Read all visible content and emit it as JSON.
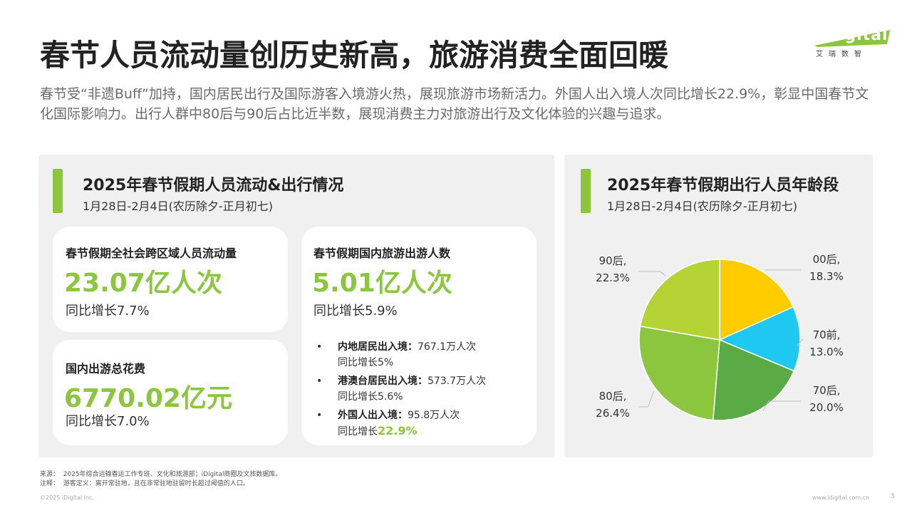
{
  "header": {
    "title": "春节人员流动量创历史新高，旅游消费全面回暖",
    "subtitle": "春节受“非遗Buff”加持，国内居民出行及国际游客入境游火热，展现旅游市场新活力。外国人出入境人次同比增长22.9%，彰显中国春节文化国际影响力。出行人群中80后与90后占比近半数，展现消费主力对旅游出行及文化体验的兴趣与追求。"
  },
  "logo": {
    "brand": "iDigital",
    "tagline": "艾瑞数智"
  },
  "left_panel": {
    "title": "2025年春节假期人员流动&出行情况",
    "date_range": "1月28日-2月4日(农历除夕-正月初七)",
    "cards": [
      {
        "label": "春节假期全社会跨区域人员流动量",
        "value": "23.07亿人次",
        "growth": "同比增长7.7%"
      },
      {
        "label": "国内出游总花费",
        "value": "6770.02亿元",
        "growth": "同比增长7.0%"
      },
      {
        "label": "春节假期国内旅游出游人数",
        "value": "5.01亿人次",
        "growth": "同比增长5.9%"
      }
    ],
    "bullets": [
      {
        "label": "内地居民出入境：",
        "value": "767.1万人次",
        "growth_prefix": "同比增长",
        "growth": "5%",
        "highlight": false
      },
      {
        "label": "港澳台居民出入境：",
        "value": "573.7万人次",
        "growth_prefix": "同比增长",
        "growth": "5.6%",
        "highlight": false
      },
      {
        "label": "外国人出入境：",
        "value": "95.8万人次",
        "growth_prefix": "同比增长",
        "growth": "22.9%",
        "highlight": true
      }
    ]
  },
  "right_panel": {
    "title": "2025年春节假期出行人员年龄段",
    "date_range": "1月28日-2月4日(农历除夕-正月初七)"
  },
  "chart_data": {
    "type": "pie",
    "start_angle": "12 o'clock",
    "direction": "clockwise",
    "slices": [
      {
        "label": "00后",
        "value": 18.3,
        "value_label": "18.3%",
        "color": "#ffcc00"
      },
      {
        "label": "70前",
        "value": 13.0,
        "value_label": "13.0%",
        "color": "#1ec8f0"
      },
      {
        "label": "70后",
        "value": 20.0,
        "value_label": "20.0%",
        "color": "#5aab46"
      },
      {
        "label": "80后",
        "value": 26.4,
        "value_label": "26.4%",
        "color": "#8cc63f"
      },
      {
        "label": "90后",
        "value": 22.3,
        "value_label": "22.3%",
        "color": "#b5d334"
      }
    ]
  },
  "footer": {
    "source_label": "来源：",
    "source": "2025年综合运输春运工作专班、文化和旅游部；iDigital商圈及文旅数据库。",
    "note_label": "注释：",
    "note": "游客定义：离开常驻地，且在非常驻地驻留时长超过阈值的人口。",
    "copyright": "©2025 iDigital Inc.",
    "website": "www.idigital.com.cn",
    "page": "3"
  },
  "colors": {
    "accent": "#8cc63f",
    "panel_bg": "#f0f0f0"
  }
}
